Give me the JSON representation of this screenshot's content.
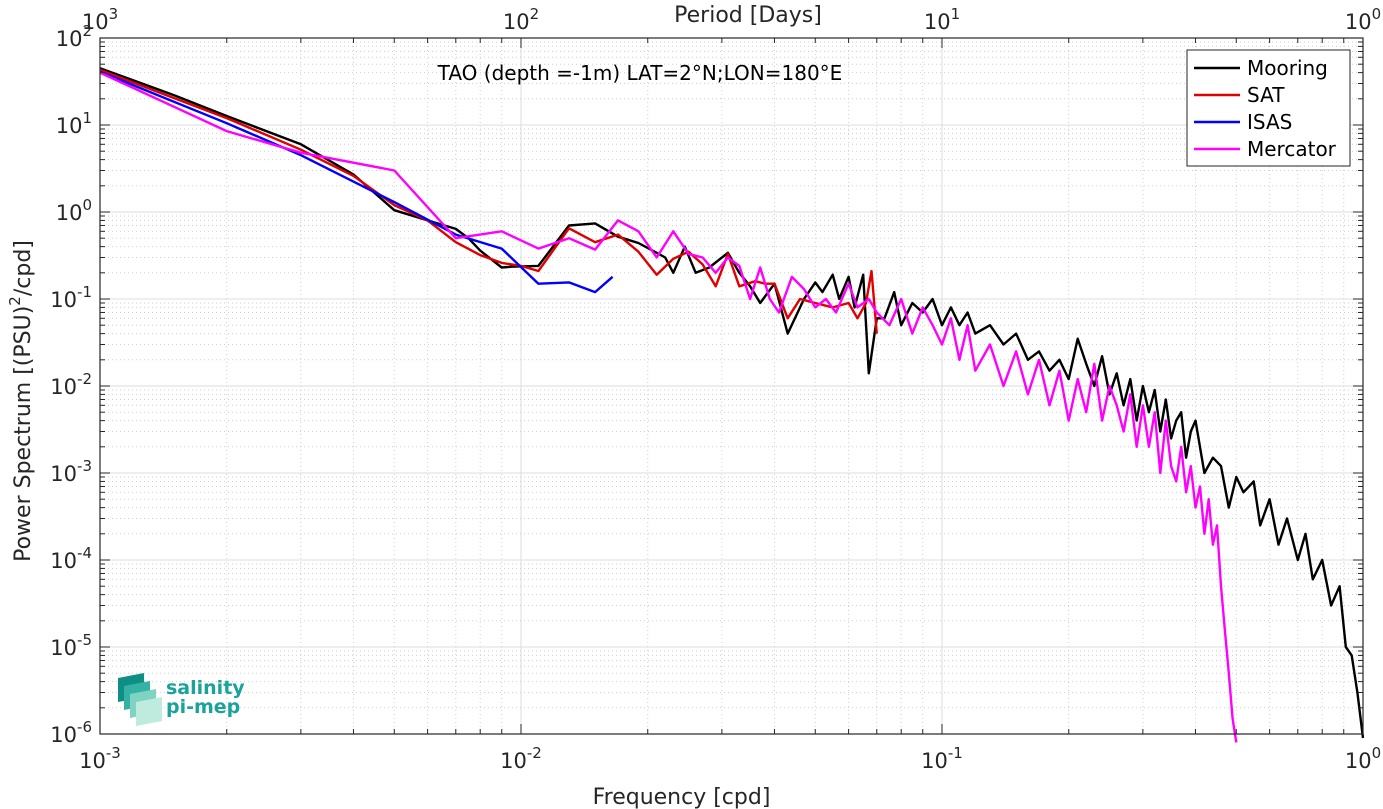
{
  "chart_data": {
    "type": "line",
    "title": "TAO (depth =-1m) LAT=2°N;LON=180°E",
    "xlabel": "Frequency [cpd]",
    "ylabel_main": "Power Spectrum [(PSU)",
    "ylabel_exp": "2",
    "ylabel_tail": "/cpd]",
    "top_axis_label": "Period [Days]",
    "x_scale": "log",
    "y_scale": "log",
    "xlim": [
      0.001,
      1
    ],
    "ylim": [
      1e-06,
      100
    ],
    "grid": true,
    "legend_position": "top-right",
    "x_ticks": [
      {
        "value": 0.001,
        "base": "10",
        "exp": "-3"
      },
      {
        "value": 0.01,
        "base": "10",
        "exp": "-2"
      },
      {
        "value": 0.1,
        "base": "10",
        "exp": "-1"
      },
      {
        "value": 1,
        "base": "10",
        "exp": "0"
      }
    ],
    "y_ticks": [
      {
        "value": 1e-06,
        "base": "10",
        "exp": "-6"
      },
      {
        "value": 1e-05,
        "base": "10",
        "exp": "-5"
      },
      {
        "value": 0.0001,
        "base": "10",
        "exp": "-4"
      },
      {
        "value": 0.001,
        "base": "10",
        "exp": "-3"
      },
      {
        "value": 0.01,
        "base": "10",
        "exp": "-2"
      },
      {
        "value": 0.1,
        "base": "10",
        "exp": "-1"
      },
      {
        "value": 1,
        "base": "10",
        "exp": "0"
      },
      {
        "value": 10,
        "base": "10",
        "exp": "1"
      },
      {
        "value": 100,
        "base": "10",
        "exp": "2"
      }
    ],
    "top_ticks": [
      {
        "value": 0.001,
        "base": "10",
        "exp": "3"
      },
      {
        "value": 0.01,
        "base": "10",
        "exp": "2"
      },
      {
        "value": 0.1,
        "base": "10",
        "exp": "1"
      },
      {
        "value": 1,
        "base": "10",
        "exp": "0"
      }
    ],
    "series": [
      {
        "name": "Mooring",
        "color": "#000000",
        "points": [
          [
            0.001,
            45
          ],
          [
            0.0015,
            22
          ],
          [
            0.002,
            12.7
          ],
          [
            0.003,
            6
          ],
          [
            0.004,
            2.7
          ],
          [
            0.005,
            1.05
          ],
          [
            0.006,
            0.8
          ],
          [
            0.007,
            0.64
          ],
          [
            0.0075,
            0.5
          ],
          [
            0.008,
            0.36
          ],
          [
            0.009,
            0.23
          ],
          [
            0.0095,
            0.235
          ],
          [
            0.011,
            0.24
          ],
          [
            0.013,
            0.7
          ],
          [
            0.015,
            0.74
          ],
          [
            0.017,
            0.52
          ],
          [
            0.019,
            0.44
          ],
          [
            0.021,
            0.34
          ],
          [
            0.022,
            0.3
          ],
          [
            0.023,
            0.2
          ],
          [
            0.0245,
            0.4
          ],
          [
            0.026,
            0.2
          ],
          [
            0.028,
            0.23
          ],
          [
            0.031,
            0.34
          ],
          [
            0.033,
            0.2
          ],
          [
            0.035,
            0.14
          ],
          [
            0.037,
            0.09
          ],
          [
            0.04,
            0.15
          ],
          [
            0.043,
            0.04
          ],
          [
            0.047,
            0.1
          ],
          [
            0.05,
            0.155
          ],
          [
            0.052,
            0.12
          ],
          [
            0.055,
            0.19
          ],
          [
            0.057,
            0.1
          ],
          [
            0.06,
            0.18
          ],
          [
            0.062,
            0.08
          ],
          [
            0.065,
            0.19
          ],
          [
            0.067,
            0.014
          ],
          [
            0.07,
            0.06
          ],
          [
            0.073,
            0.06
          ],
          [
            0.077,
            0.12
          ],
          [
            0.08,
            0.05
          ],
          [
            0.085,
            0.09
          ],
          [
            0.09,
            0.07
          ],
          [
            0.095,
            0.1
          ],
          [
            0.1,
            0.05
          ],
          [
            0.105,
            0.08
          ],
          [
            0.11,
            0.05
          ],
          [
            0.115,
            0.07
          ],
          [
            0.12,
            0.04
          ],
          [
            0.13,
            0.05
          ],
          [
            0.14,
            0.03
          ],
          [
            0.15,
            0.04
          ],
          [
            0.16,
            0.02
          ],
          [
            0.17,
            0.025
          ],
          [
            0.18,
            0.015
          ],
          [
            0.19,
            0.02
          ],
          [
            0.2,
            0.012
          ],
          [
            0.21,
            0.035
          ],
          [
            0.22,
            0.018
          ],
          [
            0.23,
            0.01
          ],
          [
            0.24,
            0.022
          ],
          [
            0.25,
            0.008
          ],
          [
            0.26,
            0.014
          ],
          [
            0.27,
            0.006
          ],
          [
            0.28,
            0.012
          ],
          [
            0.29,
            0.004
          ],
          [
            0.3,
            0.01
          ],
          [
            0.31,
            0.005
          ],
          [
            0.32,
            0.009
          ],
          [
            0.33,
            0.003
          ],
          [
            0.34,
            0.007
          ],
          [
            0.35,
            0.0025
          ],
          [
            0.36,
            0.004
          ],
          [
            0.37,
            0.005
          ],
          [
            0.38,
            0.0015
          ],
          [
            0.39,
            0.003
          ],
          [
            0.4,
            0.004
          ],
          [
            0.42,
            0.001
          ],
          [
            0.44,
            0.0015
          ],
          [
            0.46,
            0.0012
          ],
          [
            0.48,
            0.0004
          ],
          [
            0.5,
            0.0009
          ],
          [
            0.52,
            0.0006
          ],
          [
            0.55,
            0.0008
          ],
          [
            0.57,
            0.00025
          ],
          [
            0.6,
            0.0005
          ],
          [
            0.63,
            0.00015
          ],
          [
            0.66,
            0.0003
          ],
          [
            0.7,
            0.0001
          ],
          [
            0.73,
            0.0002
          ],
          [
            0.76,
            6e-05
          ],
          [
            0.8,
            0.0001
          ],
          [
            0.84,
            3e-05
          ],
          [
            0.88,
            5e-05
          ],
          [
            0.91,
            1e-05
          ],
          [
            0.94,
            8e-06
          ],
          [
            0.97,
            3e-06
          ],
          [
            1.0,
            9e-07
          ]
        ]
      },
      {
        "name": "SAT",
        "color": "#e00000",
        "points": [
          [
            0.001,
            43
          ],
          [
            0.002,
            12
          ],
          [
            0.003,
            5.2
          ],
          [
            0.004,
            2.6
          ],
          [
            0.005,
            1.2
          ],
          [
            0.006,
            0.8
          ],
          [
            0.007,
            0.45
          ],
          [
            0.008,
            0.32
          ],
          [
            0.009,
            0.26
          ],
          [
            0.01,
            0.24
          ],
          [
            0.011,
            0.21
          ],
          [
            0.013,
            0.65
          ],
          [
            0.015,
            0.45
          ],
          [
            0.017,
            0.55
          ],
          [
            0.019,
            0.35
          ],
          [
            0.021,
            0.19
          ],
          [
            0.023,
            0.29
          ],
          [
            0.025,
            0.35
          ],
          [
            0.027,
            0.25
          ],
          [
            0.029,
            0.14
          ],
          [
            0.031,
            0.33
          ],
          [
            0.033,
            0.14
          ],
          [
            0.036,
            0.16
          ],
          [
            0.038,
            0.15
          ],
          [
            0.04,
            0.15
          ],
          [
            0.043,
            0.06
          ],
          [
            0.046,
            0.1
          ],
          [
            0.05,
            0.09
          ],
          [
            0.055,
            0.08
          ],
          [
            0.06,
            0.09
          ],
          [
            0.063,
            0.06
          ],
          [
            0.066,
            0.09
          ],
          [
            0.068,
            0.21
          ],
          [
            0.07,
            0.04
          ]
        ]
      },
      {
        "name": "ISAS",
        "color": "#0000ff",
        "points": [
          [
            0.001,
            41
          ],
          [
            0.002,
            10.5
          ],
          [
            0.003,
            4.5
          ],
          [
            0.005,
            1.3
          ],
          [
            0.007,
            0.55
          ],
          [
            0.009,
            0.38
          ],
          [
            0.011,
            0.15
          ],
          [
            0.013,
            0.155
          ],
          [
            0.015,
            0.12
          ],
          [
            0.0165,
            0.18
          ]
        ]
      },
      {
        "name": "Mercator",
        "color": "#ff00ff",
        "points": [
          [
            0.001,
            40
          ],
          [
            0.002,
            8.5
          ],
          [
            0.003,
            4.8
          ],
          [
            0.005,
            3
          ],
          [
            0.007,
            0.5
          ],
          [
            0.009,
            0.6
          ],
          [
            0.011,
            0.38
          ],
          [
            0.013,
            0.5
          ],
          [
            0.015,
            0.37
          ],
          [
            0.017,
            0.8
          ],
          [
            0.019,
            0.6
          ],
          [
            0.021,
            0.3
          ],
          [
            0.023,
            0.6
          ],
          [
            0.025,
            0.33
          ],
          [
            0.027,
            0.3
          ],
          [
            0.029,
            0.2
          ],
          [
            0.031,
            0.3
          ],
          [
            0.033,
            0.24
          ],
          [
            0.035,
            0.1
          ],
          [
            0.037,
            0.23
          ],
          [
            0.039,
            0.1
          ],
          [
            0.041,
            0.07
          ],
          [
            0.044,
            0.18
          ],
          [
            0.047,
            0.13
          ],
          [
            0.05,
            0.08
          ],
          [
            0.053,
            0.1
          ],
          [
            0.056,
            0.07
          ],
          [
            0.06,
            0.15
          ],
          [
            0.063,
            0.08
          ],
          [
            0.067,
            0.1
          ],
          [
            0.07,
            0.07
          ],
          [
            0.075,
            0.05
          ],
          [
            0.08,
            0.1
          ],
          [
            0.085,
            0.04
          ],
          [
            0.09,
            0.08
          ],
          [
            0.095,
            0.05
          ],
          [
            0.1,
            0.03
          ],
          [
            0.105,
            0.06
          ],
          [
            0.11,
            0.02
          ],
          [
            0.115,
            0.05
          ],
          [
            0.12,
            0.015
          ],
          [
            0.13,
            0.03
          ],
          [
            0.14,
            0.01
          ],
          [
            0.15,
            0.025
          ],
          [
            0.16,
            0.008
          ],
          [
            0.17,
            0.02
          ],
          [
            0.18,
            0.006
          ],
          [
            0.19,
            0.015
          ],
          [
            0.2,
            0.004
          ],
          [
            0.21,
            0.012
          ],
          [
            0.22,
            0.005
          ],
          [
            0.23,
            0.018
          ],
          [
            0.24,
            0.004
          ],
          [
            0.25,
            0.01
          ],
          [
            0.26,
            0.006
          ],
          [
            0.27,
            0.003
          ],
          [
            0.28,
            0.008
          ],
          [
            0.29,
            0.002
          ],
          [
            0.3,
            0.006
          ],
          [
            0.31,
            0.002
          ],
          [
            0.32,
            0.005
          ],
          [
            0.33,
            0.001
          ],
          [
            0.34,
            0.004
          ],
          [
            0.35,
            0.0012
          ],
          [
            0.36,
            0.0008
          ],
          [
            0.37,
            0.002
          ],
          [
            0.38,
            0.0006
          ],
          [
            0.39,
            0.0012
          ],
          [
            0.4,
            0.0004
          ],
          [
            0.41,
            0.0007
          ],
          [
            0.42,
            0.0002
          ],
          [
            0.43,
            0.0005
          ],
          [
            0.44,
            0.00015
          ],
          [
            0.45,
            0.00025
          ],
          [
            0.46,
            5e-05
          ],
          [
            0.47,
            1.5e-05
          ],
          [
            0.48,
            5e-06
          ],
          [
            0.49,
            1.5e-06
          ],
          [
            0.5,
            8e-07
          ]
        ]
      }
    ]
  },
  "logo": {
    "line1": "salinity",
    "line2": "pi-mep"
  }
}
